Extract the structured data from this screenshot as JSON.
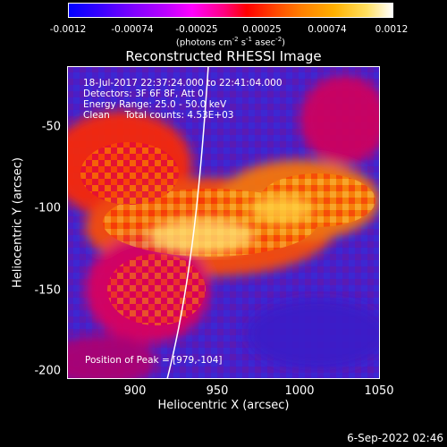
{
  "colorbar": {
    "ticks": [
      "-0.0012",
      "-0.00074",
      "-0.00025",
      "0.00025",
      "0.00074",
      "0.0012"
    ],
    "units_main": "(photons cm",
    "units_exp1": "-2",
    "units_mid": " s",
    "units_exp2": "-1",
    "units_mid2": " asec",
    "units_exp3": "-2",
    "units_end": ")"
  },
  "title": "Reconstructed RHESSI Image",
  "annotations": {
    "time_range": "18-Jul-2017 22:37:24.000 to 22:41:04.000",
    "detectors": "Detectors: 3F 6F 8F, Att 0",
    "energy": "Energy Range: 25.0 - 50.0 keV",
    "clean": "Clean     Total counts: 4.53E+03",
    "peak": "Position of Peak = [979,-104]"
  },
  "axes": {
    "xlabel": "Heliocentric X (arcsec)",
    "ylabel": "Heliocentric Y (arcsec)",
    "xticks": [
      "900",
      "950",
      "1000",
      "1050"
    ],
    "yticks": [
      "-50",
      "-100",
      "-150",
      "-200"
    ]
  },
  "timestamp": "6-Sep-2022 02:46",
  "colors": {
    "background": "#000000",
    "frame": "#ffffff",
    "limb": "#ffffff"
  }
}
